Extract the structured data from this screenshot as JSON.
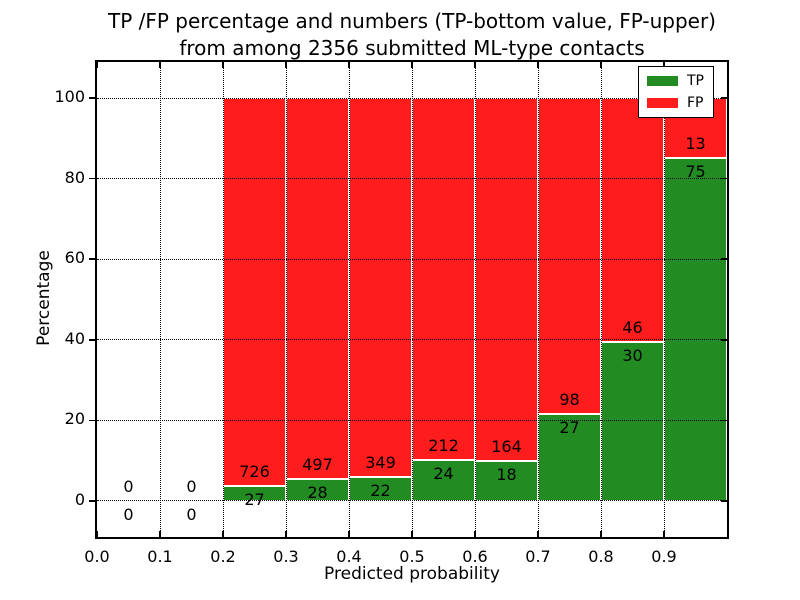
{
  "figure": {
    "title_line1": "TP /FP percentage and numbers (TP-bottom value, FP-upper)",
    "title_line2": "from among 2356 submitted ML-type contacts",
    "xlabel": "Predicted probability",
    "ylabel": "Percentage"
  },
  "colors": {
    "tp": "#228b22",
    "fp": "#ff1c1c",
    "bar_edge": "#ffffff",
    "grid": "#000000",
    "text": "#000000",
    "background": "#ffffff"
  },
  "legend": {
    "items": [
      {
        "key": "tp",
        "label": "TP"
      },
      {
        "key": "fp",
        "label": "FP"
      }
    ]
  },
  "chart_data": {
    "type": "bar",
    "stacked": true,
    "normalized": "each bin scaled to 100 percent",
    "title": "TP /FP percentage and numbers (TP-bottom value, FP-upper) from among 2356 submitted ML-type contacts",
    "xlabel": "Predicted probability",
    "ylabel": "Percentage",
    "total_contacts": 2356,
    "bin_width": 0.1,
    "bin_starts": [
      0.0,
      0.1,
      0.2,
      0.3,
      0.4,
      0.5,
      0.6,
      0.7,
      0.8,
      0.9
    ],
    "series": [
      {
        "name": "TP",
        "color_key": "tp",
        "counts": [
          0,
          0,
          27,
          28,
          22,
          24,
          18,
          27,
          30,
          75
        ]
      },
      {
        "name": "FP",
        "color_key": "fp",
        "counts": [
          0,
          0,
          726,
          497,
          349,
          212,
          164,
          98,
          46,
          13
        ]
      }
    ],
    "xlim": [
      0.0,
      1.0
    ],
    "ylim": [
      -9,
      109
    ],
    "xtick_values": [
      0.0,
      0.1,
      0.2,
      0.3,
      0.4,
      0.5,
      0.6,
      0.7,
      0.8,
      0.9
    ],
    "xtick_labels": [
      "0.0",
      "0.1",
      "0.2",
      "0.3",
      "0.4",
      "0.5",
      "0.6",
      "0.7",
      "0.8",
      "0.9"
    ],
    "ytick_values": [
      0,
      20,
      40,
      60,
      80,
      100
    ],
    "ytick_labels": [
      "0",
      "20",
      "40",
      "60",
      "80",
      "100"
    ],
    "grid": "dotted",
    "legend_position": "upper right",
    "value_label_offset_pct": 3.5
  }
}
